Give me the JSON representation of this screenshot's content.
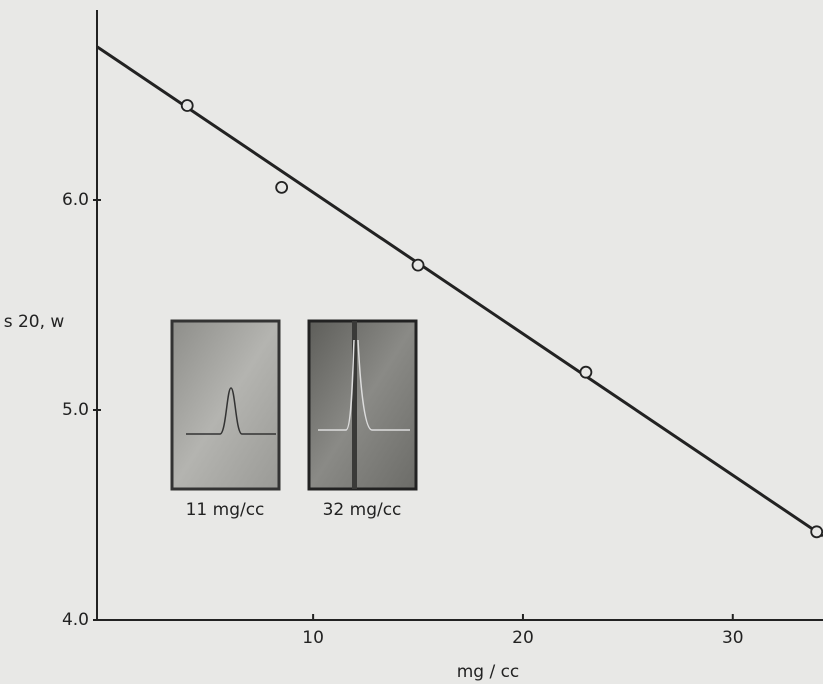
{
  "chart_data": {
    "type": "scatter",
    "x_label": "mg / cc",
    "y_label": "s 20, w",
    "x": [
      4,
      8.5,
      15,
      23,
      34
    ],
    "values": [
      6.45,
      6.06,
      5.69,
      5.18,
      4.42
    ],
    "fit_line": {
      "x": [
        -0.3,
        34.3
      ],
      "values": [
        6.73,
        4.4
      ]
    },
    "color": "#222222",
    "xlim": [
      -0.3,
      34.3
    ],
    "ylim": [
      4.0,
      6.9
    ],
    "xticks": [
      10,
      20,
      30
    ],
    "yticks": [
      {
        "value": 4.0,
        "label": "4.0"
      },
      {
        "value": 5.0,
        "label": "5.0"
      },
      {
        "value": 6.0,
        "label": "6.0"
      }
    ],
    "annotations": [
      "11 mg/cc",
      "32 mg/cc"
    ],
    "grid": false
  }
}
